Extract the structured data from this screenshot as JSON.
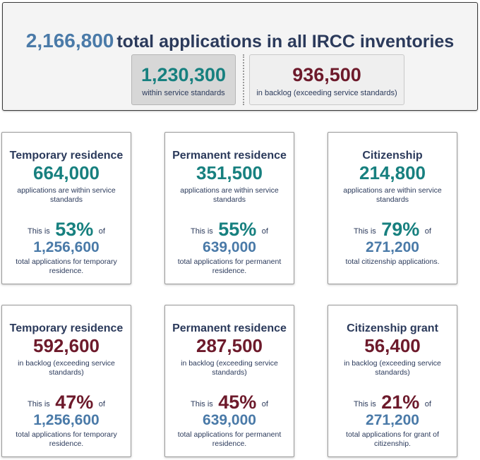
{
  "summary": {
    "total": "2,166,800",
    "title_rest": "total applications in all IRCC inventories",
    "within": {
      "value": "1,230,300",
      "label": "within service standards"
    },
    "backlog": {
      "value": "936,500",
      "label": "in backlog (exceeding service standards)"
    }
  },
  "colors": {
    "teal": "#17807f",
    "maroon": "#6d1a2b",
    "blue": "#4a7aa8",
    "navy": "#2b3a5b"
  },
  "cards": [
    {
      "title": "Temporary residence",
      "value": "664,000",
      "desc": "applications are within service standards",
      "pct_pre": "This is",
      "pct": "53%",
      "pct_post": "of",
      "total": "1,256,600",
      "total_desc": "total applications for temporary residence."
    },
    {
      "title": "Permanent residence",
      "value": "351,500",
      "desc": "applications are within service standards",
      "pct_pre": "This is",
      "pct": "55%",
      "pct_post": "of",
      "total": "639,000",
      "total_desc": "total applications for permanent residence."
    },
    {
      "title": "Citizenship",
      "value": "214,800",
      "desc": "applications are within service standards",
      "pct_pre": "This is",
      "pct": "79%",
      "pct_post": "of",
      "total": "271,200",
      "total_desc": "total citizenship applications."
    },
    {
      "title": "Temporary residence",
      "value": "592,600",
      "desc": "in backlog (exceeding service standards)",
      "pct_pre": "This is",
      "pct": "47%",
      "pct_post": "of",
      "total": "1,256,600",
      "total_desc": "total applications for temporary residence."
    },
    {
      "title": "Permanent residence",
      "value": "287,500",
      "desc": "in backlog (exceeding service standards)",
      "pct_pre": "This is",
      "pct": "45%",
      "pct_post": "of",
      "total": "639,000",
      "total_desc": "total applications for permanent residence."
    },
    {
      "title": "Citizenship grant",
      "value": "56,400",
      "desc": "in backlog (exceeding service standards)",
      "pct_pre": "This is",
      "pct": "21%",
      "pct_post": "of",
      "total": "271,200",
      "total_desc": "total applications for grant of citizenship."
    }
  ]
}
